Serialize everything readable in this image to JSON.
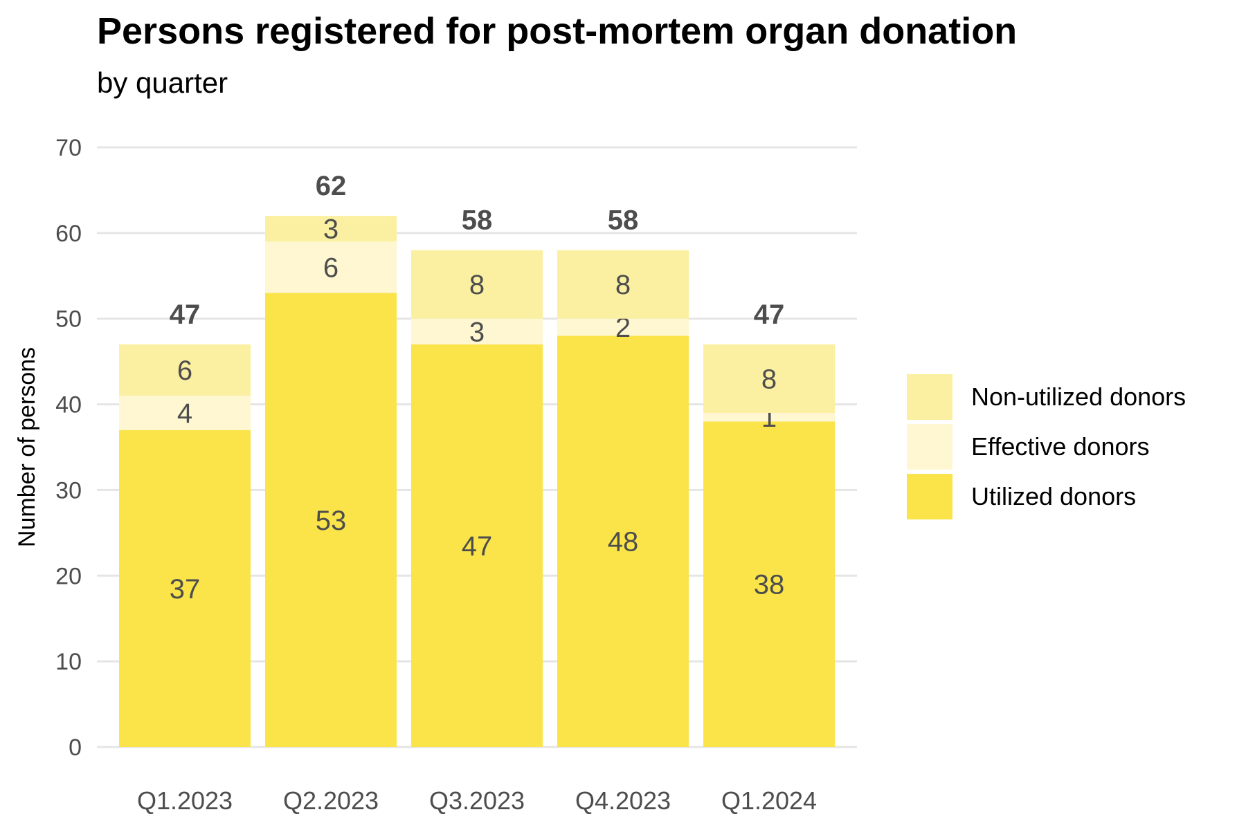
{
  "chart_data": {
    "type": "bar",
    "stacked": true,
    "title": "Persons registered for post-mortem organ donation",
    "subtitle": "by quarter",
    "xlabel": "",
    "ylabel": "Number of persons",
    "ylim": [
      0,
      70
    ],
    "yticks": [
      0,
      10,
      20,
      30,
      40,
      50,
      60,
      70
    ],
    "yticklabels": [
      "0",
      "10",
      "20",
      "30",
      "40",
      "50",
      "60",
      "70"
    ],
    "categories": [
      "Q1.2023",
      "Q2.2023",
      "Q3.2023",
      "Q4.2023",
      "Q1.2024"
    ],
    "series": [
      {
        "name": "Utilized donors",
        "values": [
          37,
          53,
          47,
          48,
          38
        ],
        "labels": [
          "37",
          "53",
          "47",
          "48",
          "38"
        ],
        "color": "#FAE44A"
      },
      {
        "name": "Effective donors",
        "values": [
          4,
          6,
          3,
          2,
          1
        ],
        "labels": [
          "4",
          "6",
          "3",
          "2",
          "1"
        ],
        "color": "#FEF7D1"
      },
      {
        "name": "Non-utilized donors",
        "values": [
          6,
          3,
          8,
          8,
          8
        ],
        "labels": [
          "6",
          "3",
          "8",
          "8",
          "8"
        ],
        "color": "#FBF0A1"
      }
    ],
    "totals": [
      47,
      62,
      58,
      58,
      47
    ],
    "total_labels": [
      "47",
      "62",
      "58",
      "58",
      "47"
    ],
    "legend": [
      "Non-utilized donors",
      "Effective donors",
      "Utilized donors"
    ],
    "legend_position": "right",
    "grid": true,
    "colors": {
      "grid": "#E5E5E5",
      "tick_text": "#4D4D4D",
      "label_text": "#4D4D4D"
    }
  }
}
